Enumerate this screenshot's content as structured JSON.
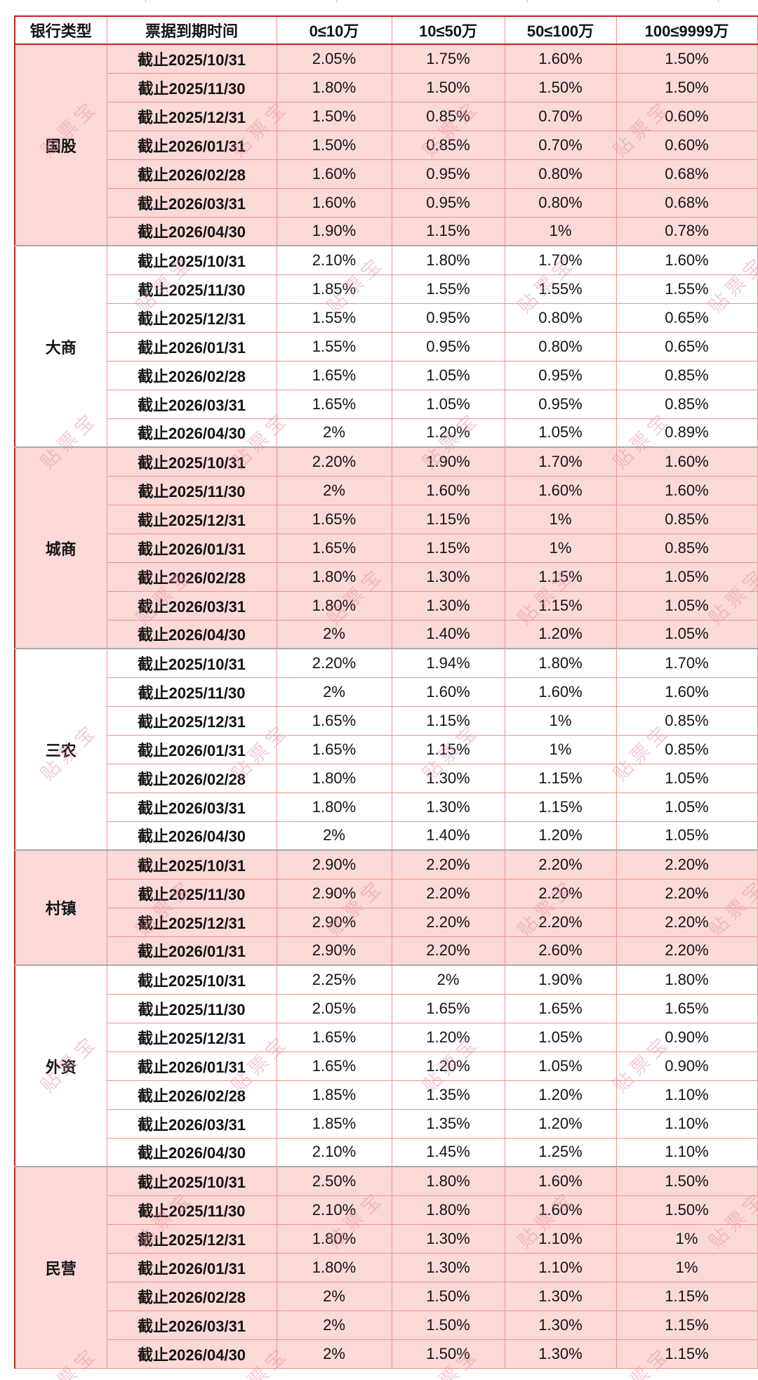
{
  "table": {
    "columns": [
      "银行类型",
      "票据到期时间",
      "0≤10万",
      "10≤50万",
      "50≤100万",
      "100≤9999万"
    ],
    "groups": [
      {
        "bank_type": "国股",
        "rows": [
          {
            "date": "截止2025/10/31",
            "rates": [
              "2.05%",
              "1.75%",
              "1.60%",
              "1.50%"
            ]
          },
          {
            "date": "截止2025/11/30",
            "rates": [
              "1.80%",
              "1.50%",
              "1.50%",
              "1.50%"
            ]
          },
          {
            "date": "截止2025/12/31",
            "rates": [
              "1.50%",
              "0.85%",
              "0.70%",
              "0.60%"
            ]
          },
          {
            "date": "截止2026/01/31",
            "rates": [
              "1.50%",
              "0.85%",
              "0.70%",
              "0.60%"
            ]
          },
          {
            "date": "截止2026/02/28",
            "rates": [
              "1.60%",
              "0.95%",
              "0.80%",
              "0.68%"
            ]
          },
          {
            "date": "截止2026/03/31",
            "rates": [
              "1.60%",
              "0.95%",
              "0.80%",
              "0.68%"
            ]
          },
          {
            "date": "截止2026/04/30",
            "rates": [
              "1.90%",
              "1.15%",
              "1%",
              "0.78%"
            ]
          }
        ]
      },
      {
        "bank_type": "大商",
        "rows": [
          {
            "date": "截止2025/10/31",
            "rates": [
              "2.10%",
              "1.80%",
              "1.70%",
              "1.60%"
            ]
          },
          {
            "date": "截止2025/11/30",
            "rates": [
              "1.85%",
              "1.55%",
              "1.55%",
              "1.55%"
            ]
          },
          {
            "date": "截止2025/12/31",
            "rates": [
              "1.55%",
              "0.95%",
              "0.80%",
              "0.65%"
            ]
          },
          {
            "date": "截止2026/01/31",
            "rates": [
              "1.55%",
              "0.95%",
              "0.80%",
              "0.65%"
            ]
          },
          {
            "date": "截止2026/02/28",
            "rates": [
              "1.65%",
              "1.05%",
              "0.95%",
              "0.85%"
            ]
          },
          {
            "date": "截止2026/03/31",
            "rates": [
              "1.65%",
              "1.05%",
              "0.95%",
              "0.85%"
            ]
          },
          {
            "date": "截止2026/04/30",
            "rates": [
              "2%",
              "1.20%",
              "1.05%",
              "0.89%"
            ]
          }
        ]
      },
      {
        "bank_type": "城商",
        "rows": [
          {
            "date": "截止2025/10/31",
            "rates": [
              "2.20%",
              "1.90%",
              "1.70%",
              "1.60%"
            ]
          },
          {
            "date": "截止2025/11/30",
            "rates": [
              "2%",
              "1.60%",
              "1.60%",
              "1.60%"
            ]
          },
          {
            "date": "截止2025/12/31",
            "rates": [
              "1.65%",
              "1.15%",
              "1%",
              "0.85%"
            ]
          },
          {
            "date": "截止2026/01/31",
            "rates": [
              "1.65%",
              "1.15%",
              "1%",
              "0.85%"
            ]
          },
          {
            "date": "截止2026/02/28",
            "rates": [
              "1.80%",
              "1.30%",
              "1.15%",
              "1.05%"
            ]
          },
          {
            "date": "截止2026/03/31",
            "rates": [
              "1.80%",
              "1.30%",
              "1.15%",
              "1.05%"
            ]
          },
          {
            "date": "截止2026/04/30",
            "rates": [
              "2%",
              "1.40%",
              "1.20%",
              "1.05%"
            ]
          }
        ]
      },
      {
        "bank_type": "三农",
        "rows": [
          {
            "date": "截止2025/10/31",
            "rates": [
              "2.20%",
              "1.94%",
              "1.80%",
              "1.70%"
            ]
          },
          {
            "date": "截止2025/11/30",
            "rates": [
              "2%",
              "1.60%",
              "1.60%",
              "1.60%"
            ]
          },
          {
            "date": "截止2025/12/31",
            "rates": [
              "1.65%",
              "1.15%",
              "1%",
              "0.85%"
            ]
          },
          {
            "date": "截止2026/01/31",
            "rates": [
              "1.65%",
              "1.15%",
              "1%",
              "0.85%"
            ]
          },
          {
            "date": "截止2026/02/28",
            "rates": [
              "1.80%",
              "1.30%",
              "1.15%",
              "1.05%"
            ]
          },
          {
            "date": "截止2026/03/31",
            "rates": [
              "1.80%",
              "1.30%",
              "1.15%",
              "1.05%"
            ]
          },
          {
            "date": "截止2026/04/30",
            "rates": [
              "2%",
              "1.40%",
              "1.20%",
              "1.05%"
            ]
          }
        ]
      },
      {
        "bank_type": "村镇",
        "rows": [
          {
            "date": "截止2025/10/31",
            "rates": [
              "2.90%",
              "2.20%",
              "2.20%",
              "2.20%"
            ]
          },
          {
            "date": "截止2025/11/30",
            "rates": [
              "2.90%",
              "2.20%",
              "2.20%",
              "2.20%"
            ]
          },
          {
            "date": "截止2025/12/31",
            "rates": [
              "2.90%",
              "2.20%",
              "2.20%",
              "2.20%"
            ]
          },
          {
            "date": "截止2026/01/31",
            "rates": [
              "2.90%",
              "2.20%",
              "2.60%",
              "2.20%"
            ]
          }
        ]
      },
      {
        "bank_type": "外资",
        "rows": [
          {
            "date": "截止2025/10/31",
            "rates": [
              "2.25%",
              "2%",
              "1.90%",
              "1.80%"
            ]
          },
          {
            "date": "截止2025/11/30",
            "rates": [
              "2.05%",
              "1.65%",
              "1.65%",
              "1.65%"
            ]
          },
          {
            "date": "截止2025/12/31",
            "rates": [
              "1.65%",
              "1.20%",
              "1.05%",
              "0.90%"
            ]
          },
          {
            "date": "截止2026/01/31",
            "rates": [
              "1.65%",
              "1.20%",
              "1.05%",
              "0.90%"
            ]
          },
          {
            "date": "截止2026/02/28",
            "rates": [
              "1.85%",
              "1.35%",
              "1.20%",
              "1.10%"
            ]
          },
          {
            "date": "截止2026/03/31",
            "rates": [
              "1.85%",
              "1.35%",
              "1.20%",
              "1.10%"
            ]
          },
          {
            "date": "截止2026/04/30",
            "rates": [
              "2.10%",
              "1.45%",
              "1.25%",
              "1.10%"
            ]
          }
        ]
      },
      {
        "bank_type": "民营",
        "rows": [
          {
            "date": "截止2025/10/31",
            "rates": [
              "2.50%",
              "1.80%",
              "1.60%",
              "1.50%"
            ]
          },
          {
            "date": "截止2025/11/30",
            "rates": [
              "2.10%",
              "1.80%",
              "1.60%",
              "1.50%"
            ]
          },
          {
            "date": "截止2025/12/31",
            "rates": [
              "1.80%",
              "1.30%",
              "1.10%",
              "1%"
            ]
          },
          {
            "date": "截止2026/01/31",
            "rates": [
              "1.80%",
              "1.30%",
              "1.10%",
              "1%"
            ]
          },
          {
            "date": "截止2026/02/28",
            "rates": [
              "2%",
              "1.50%",
              "1.30%",
              "1.15%"
            ]
          },
          {
            "date": "截止2026/03/31",
            "rates": [
              "2%",
              "1.50%",
              "1.30%",
              "1.15%"
            ]
          },
          {
            "date": "截止2026/04/30",
            "rates": [
              "2%",
              "1.50%",
              "1.30%",
              "1.15%"
            ]
          }
        ]
      }
    ]
  },
  "watermark": {
    "text": "贴票宝"
  },
  "colors": {
    "row_pink": "#fbd9d7",
    "border_light": "#f0928f",
    "border_dark": "#c1251f",
    "border_group": "#a9a9a9",
    "watermark": "#e4899e",
    "text": "#141414"
  }
}
